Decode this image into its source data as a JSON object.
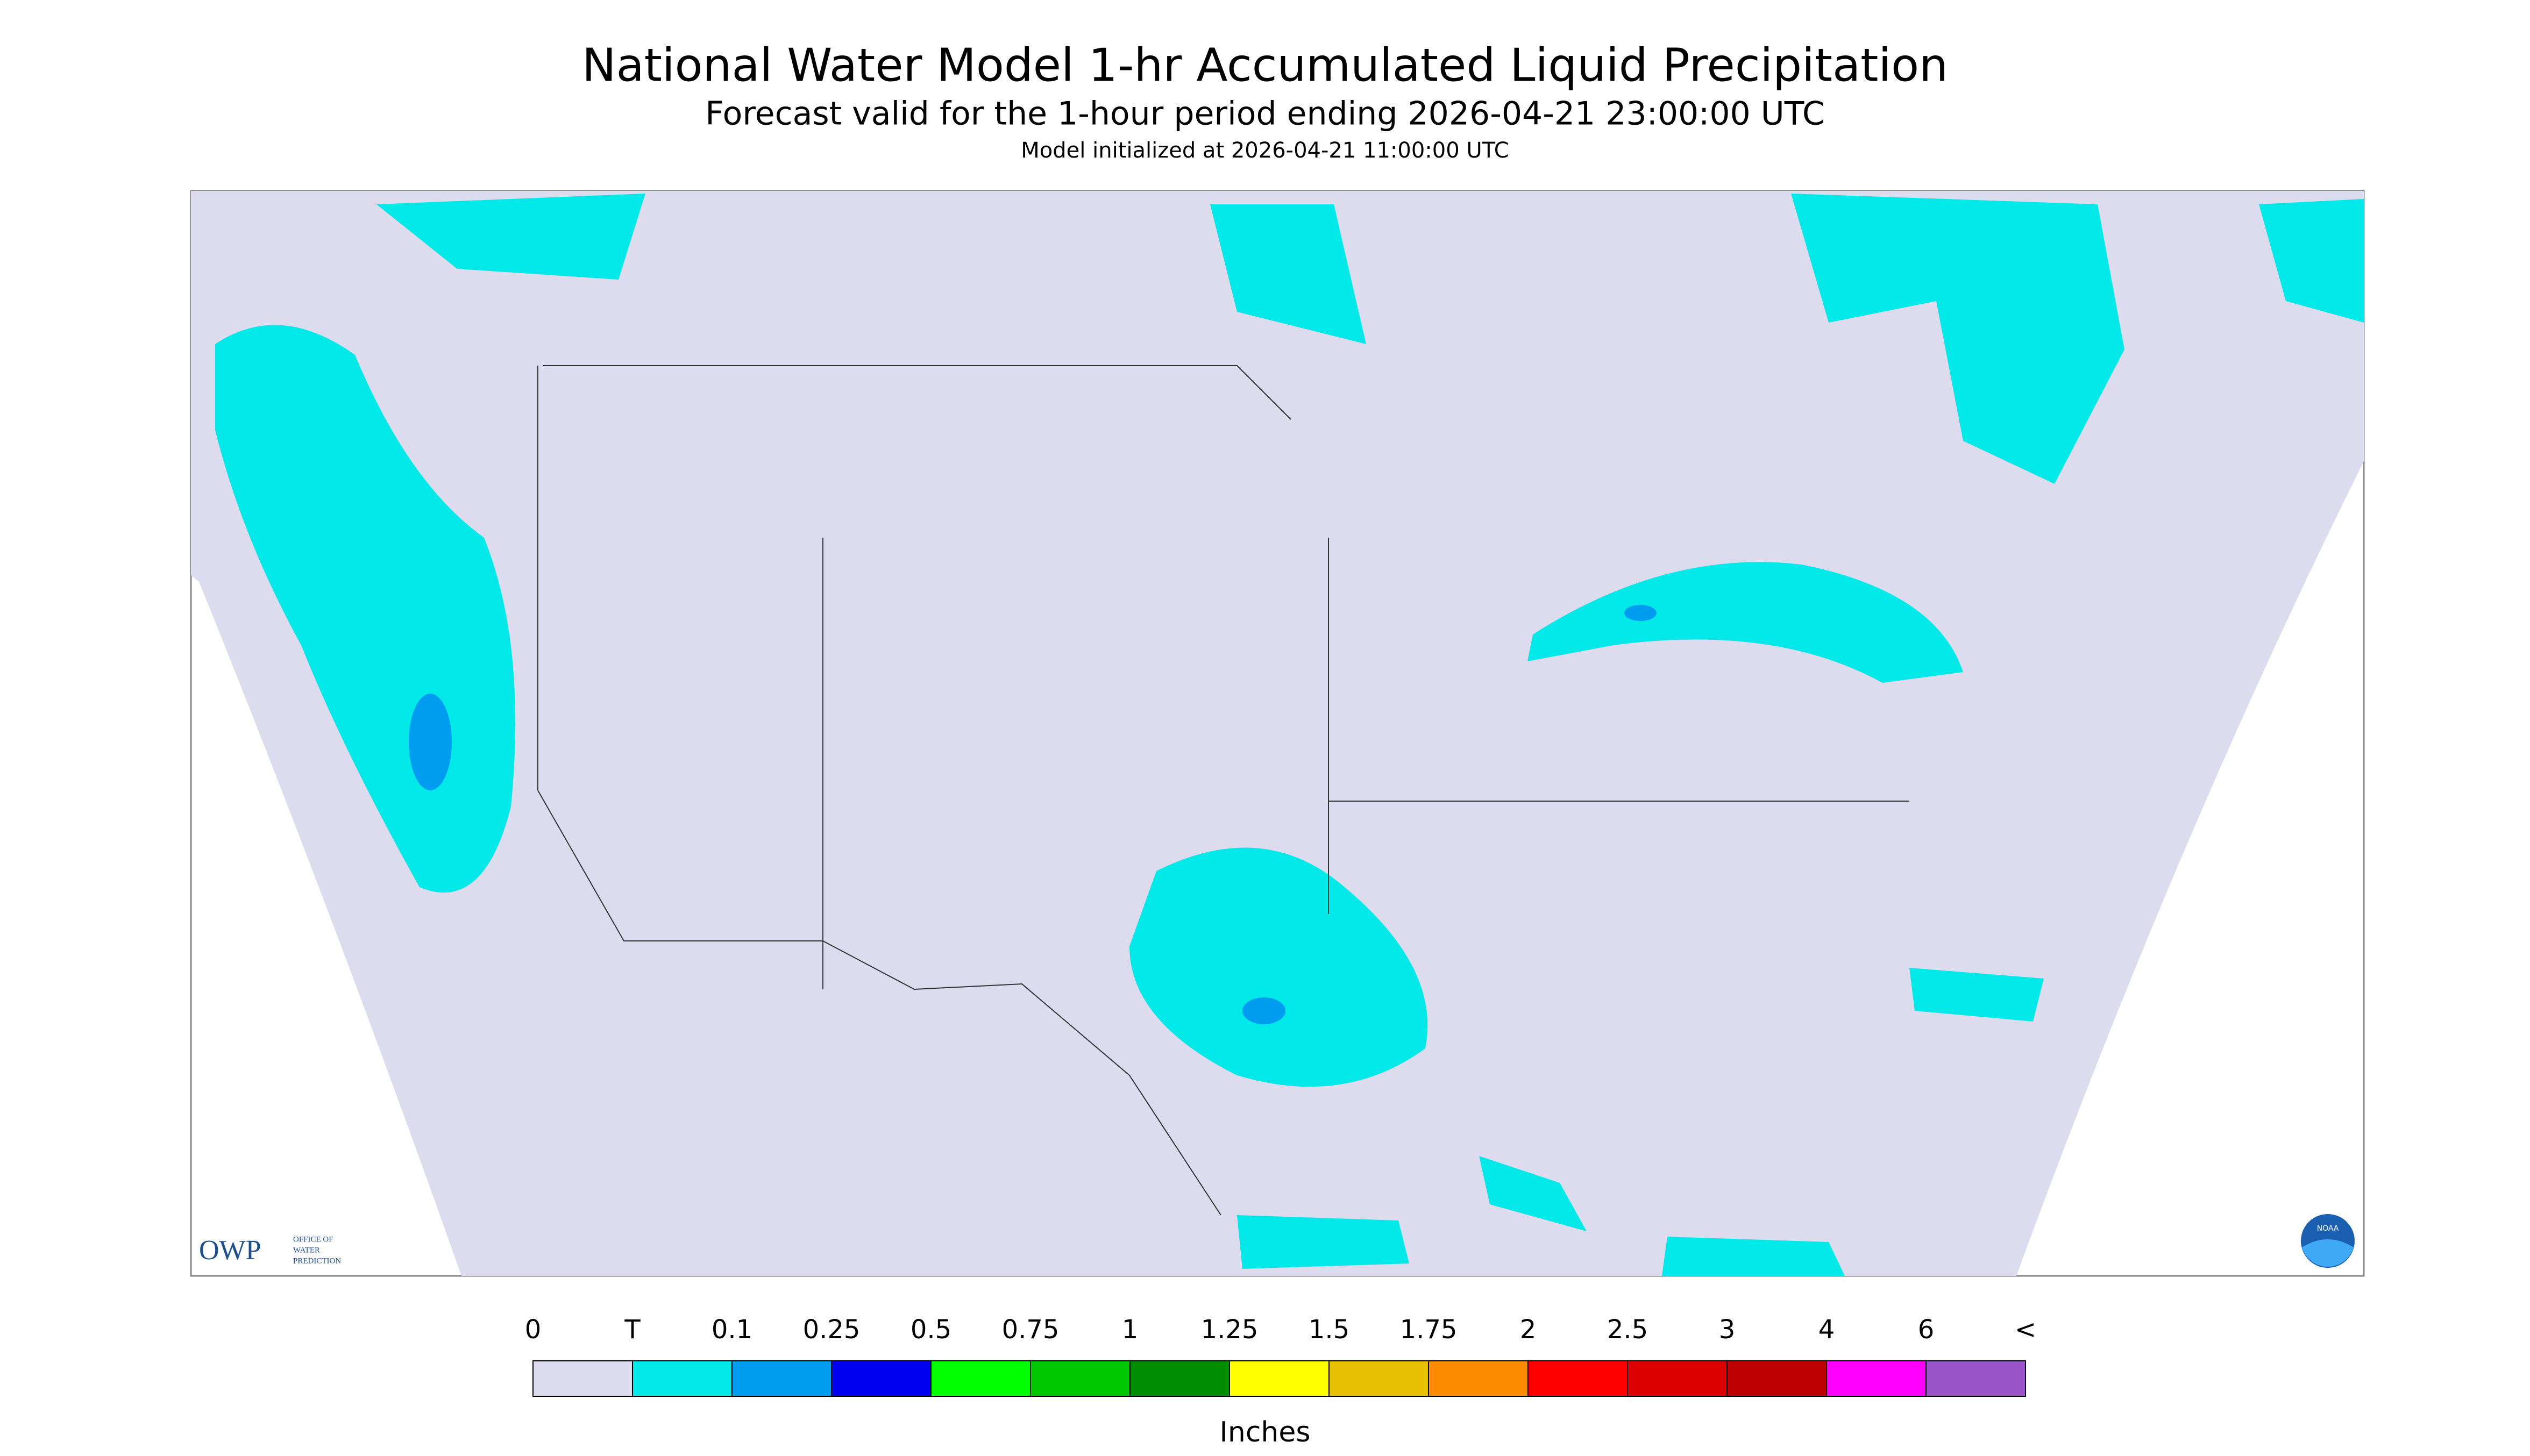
{
  "header": {
    "title": "National Water Model 1-hr Accumulated Liquid Precipitation",
    "subtitle": "Forecast valid for the 1-hour period ending 2026-04-21 23:00:00 UTC",
    "init": "Model initialized at 2026-04-21 11:00:00 UTC"
  },
  "legend": {
    "labels": [
      "0",
      "T",
      "0.1",
      "0.25",
      "0.5",
      "0.75",
      "1",
      "1.25",
      "1.5",
      "1.75",
      "2",
      "2.5",
      "3",
      "4",
      "6",
      "<"
    ],
    "colors": [
      "#dcdcee",
      "#00e8e8",
      "#009cf0",
      "#0000f0",
      "#00ff00",
      "#00c800",
      "#008c00",
      "#ffff00",
      "#e6c000",
      "#ff8c00",
      "#ff0000",
      "#dc0000",
      "#be0000",
      "#ff00ff",
      "#9a55c8"
    ],
    "unit": "Inches"
  },
  "logos": {
    "owp": "OWP",
    "owp_name": [
      "OFFICE OF",
      "WATER",
      "PREDICTION"
    ],
    "noaa": "NOAA"
  }
}
